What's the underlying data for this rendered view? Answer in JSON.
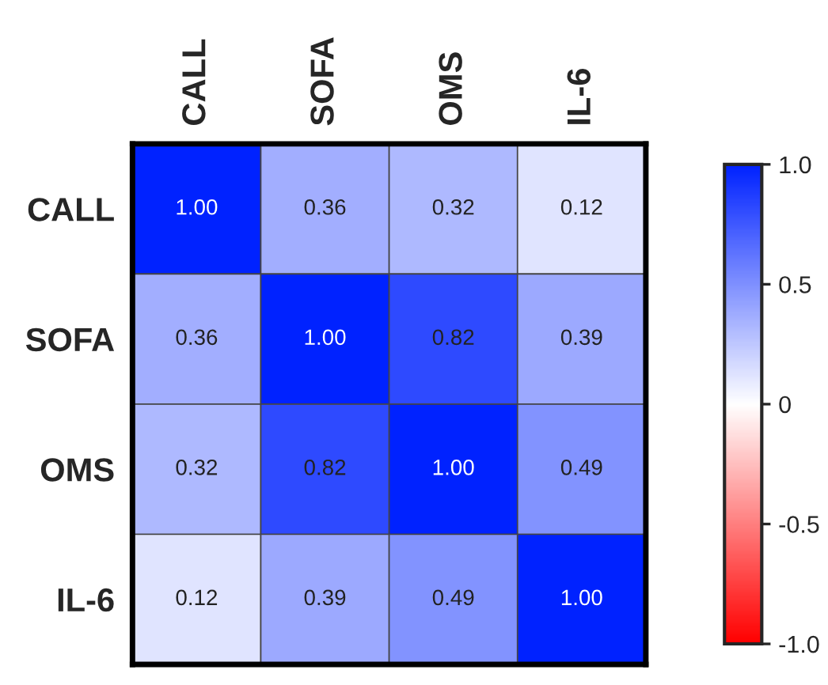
{
  "chart_data": {
    "type": "heatmap",
    "categories": [
      "CALL",
      "SOFA",
      "OMS",
      "IL-6"
    ],
    "y_categories": [
      "CALL",
      "SOFA",
      "OMS",
      "IL-6"
    ],
    "cells": [
      [
        1.0,
        0.36,
        0.32,
        0.12
      ],
      [
        0.36,
        1.0,
        0.82,
        0.39
      ],
      [
        0.32,
        0.82,
        1.0,
        0.49
      ],
      [
        0.12,
        0.39,
        0.49,
        1.0
      ]
    ],
    "cell_labels": [
      [
        "1.00",
        "0.36",
        "0.32",
        "0.12"
      ],
      [
        "0.36",
        "1.00",
        "0.82",
        "0.39"
      ],
      [
        "0.32",
        "0.82",
        "1.00",
        "0.49"
      ],
      [
        "0.12",
        "0.39",
        "0.49",
        "1.00"
      ]
    ],
    "clim": [
      -1.0,
      1.0
    ],
    "cticks": [
      {
        "value": 1.0,
        "label": "1.0"
      },
      {
        "value": 0.5,
        "label": "0.5"
      },
      {
        "value": 0,
        "label": "0"
      },
      {
        "value": -0.5,
        "label": "-0.5"
      },
      {
        "value": -1.0,
        "label": "-1.0"
      }
    ]
  }
}
